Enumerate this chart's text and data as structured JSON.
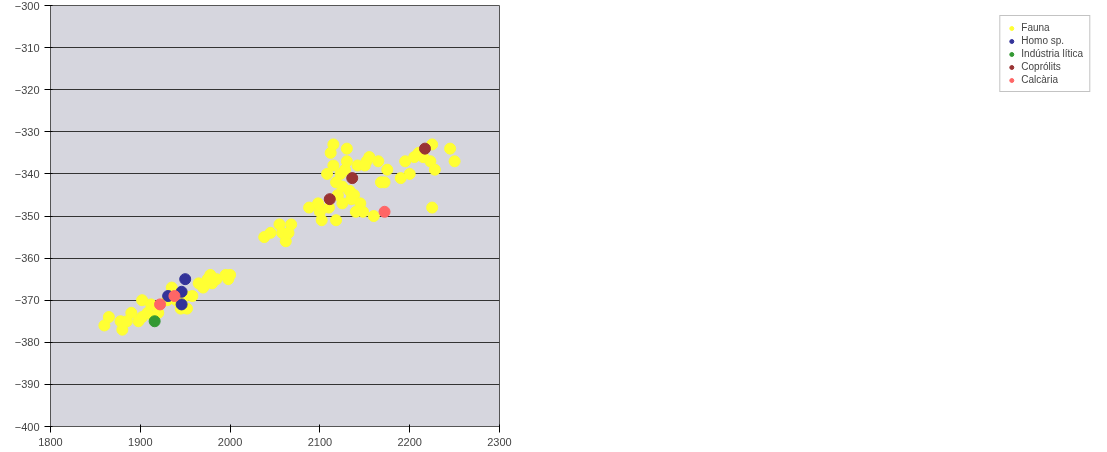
{
  "chart_data": {
    "type": "scatter",
    "xlim": [
      1800,
      2300
    ],
    "xticks": [
      1800,
      1900,
      2000,
      2100,
      2200,
      2300
    ],
    "ylim": [
      -400,
      -300
    ],
    "yticks": [
      -400,
      -390,
      -380,
      -370,
      -360,
      -350,
      -340,
      -330,
      -320,
      -310,
      -300
    ],
    "grid": "y",
    "legend": "right",
    "marker": "circle",
    "series": [
      {
        "name": "Fauna",
        "color": "#ffff33",
        "x": [
          1860,
          1865,
          1878,
          1880,
          1885,
          1890,
          1898,
          1902,
          1902,
          1908,
          1912,
          1915,
          1920,
          1930,
          1935,
          1940,
          1945,
          1950,
          1952,
          1958,
          1965,
          1970,
          1975,
          1978,
          1980,
          1985,
          1995,
          1998,
          2000,
          2038,
          2045,
          2055,
          2058,
          2062,
          2068,
          2065,
          2088,
          2098,
          2100,
          2102,
          2112,
          2115,
          2115,
          2118,
          2118,
          2120,
          2123,
          2125,
          2125,
          2128,
          2130,
          2130,
          2133,
          2138,
          2140,
          2142,
          2145,
          2148,
          2152,
          2155,
          2160,
          2165,
          2168,
          2172,
          2175,
          2190,
          2195,
          2200,
          2205,
          2210,
          2215,
          2225,
          2223,
          2228,
          2225,
          2245,
          2250,
          2110,
          2135,
          2150,
          2108
        ],
        "values": [
          -376,
          -374,
          -375,
          -377,
          -375,
          -373,
          -375,
          -374,
          -370,
          -373,
          -371,
          -374,
          -373,
          -370,
          -367,
          -370,
          -372,
          -369,
          -372,
          -369,
          -366,
          -367,
          -365,
          -364,
          -366,
          -365,
          -364,
          -365,
          -364,
          -355,
          -354,
          -352,
          -354,
          -356,
          -352,
          -354,
          -348,
          -347,
          -349,
          -351,
          -335,
          -333,
          -338,
          -342,
          -351,
          -345,
          -340,
          -347,
          -343,
          -339,
          -334,
          -337,
          -344,
          -345,
          -349,
          -338,
          -347,
          -349,
          -337,
          -336,
          -350,
          -337,
          -342,
          -342,
          -339,
          -341,
          -337,
          -340,
          -336,
          -335,
          -336,
          -333,
          -337,
          -339,
          -348,
          -334,
          -337,
          -348,
          -346,
          -338,
          -340
        ]
      },
      {
        "name": "Homo sp.",
        "color": "#333399",
        "x": [
          1931,
          1946,
          1946,
          1950
        ],
        "values": [
          -369,
          -368,
          -371,
          -365
        ]
      },
      {
        "name": "Indústria lítica",
        "color": "#339933",
        "x": [
          1916
        ],
        "values": [
          -375
        ]
      },
      {
        "name": "Coprólits",
        "color": "#993333",
        "x": [
          2111,
          2136,
          2217
        ],
        "values": [
          -346,
          -341,
          -334
        ]
      },
      {
        "name": "Calcària",
        "color": "#ff6666",
        "x": [
          1922,
          1938,
          2172
        ],
        "values": [
          -371,
          -369,
          -349
        ]
      }
    ]
  }
}
